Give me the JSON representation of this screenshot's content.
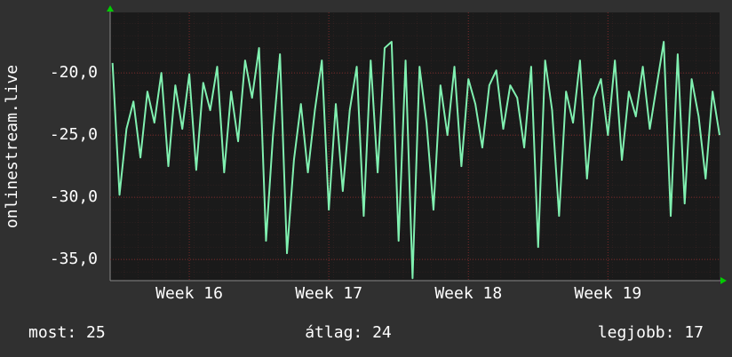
{
  "chart_data": {
    "type": "line",
    "y_label": "onlinestream.live",
    "x": [
      15.45,
      15.5,
      15.55,
      15.6,
      15.65,
      15.7,
      15.75,
      15.8,
      15.85,
      15.9,
      15.95,
      16.0,
      16.05,
      16.1,
      16.15,
      16.2,
      16.25,
      16.3,
      16.35,
      16.4,
      16.45,
      16.5,
      16.55,
      16.6,
      16.65,
      16.7,
      16.75,
      16.8,
      16.85,
      16.9,
      16.95,
      17.0,
      17.05,
      17.1,
      17.15,
      17.2,
      17.25,
      17.3,
      17.35,
      17.4,
      17.45,
      17.5,
      17.55,
      17.6,
      17.65,
      17.7,
      17.75,
      17.8,
      17.85,
      17.9,
      17.95,
      18.0,
      18.05,
      18.1,
      18.15,
      18.2,
      18.25,
      18.3,
      18.35,
      18.4,
      18.45,
      18.5,
      18.55,
      18.6,
      18.65,
      18.7,
      18.75,
      18.8,
      18.85,
      18.9,
      18.95,
      19.0,
      19.05,
      19.1,
      19.15,
      19.2,
      19.25,
      19.3,
      19.35,
      19.4,
      19.45,
      19.5,
      19.55,
      19.6,
      19.65,
      19.7,
      19.75,
      19.8
    ],
    "series": [
      {
        "name": "onlinestream.live",
        "color": "#80f0b0",
        "values": [
          -19.2,
          -29.8,
          -24.5,
          -22.3,
          -26.8,
          -21.5,
          -24.0,
          -20.0,
          -27.5,
          -21.0,
          -24.5,
          -20.1,
          -27.8,
          -20.8,
          -23.0,
          -19.5,
          -28.0,
          -21.5,
          -25.5,
          -19.0,
          -22.0,
          -18.0,
          -33.5,
          -25.0,
          -18.5,
          -34.5,
          -27.0,
          -22.5,
          -28.0,
          -23.0,
          -19.0,
          -31.0,
          -22.5,
          -29.5,
          -23.0,
          -19.5,
          -31.5,
          -19.0,
          -28.0,
          -18.0,
          -17.5,
          -33.5,
          -19.0,
          -36.5,
          -19.5,
          -24.0,
          -31.0,
          -21.0,
          -25.0,
          -19.5,
          -27.5,
          -20.5,
          -22.5,
          -26.0,
          -21.0,
          -19.8,
          -24.5,
          -21.0,
          -22.0,
          -26.0,
          -19.5,
          -34.0,
          -19.0,
          -23.0,
          -31.5,
          -21.5,
          -24.0,
          -19.0,
          -28.5,
          -22.0,
          -20.5,
          -25.0,
          -19.0,
          -27.0,
          -21.5,
          -23.5,
          -19.5,
          -24.5,
          -21.0,
          -17.5,
          -31.5,
          -18.5,
          -30.5,
          -20.5,
          -23.5,
          -28.5,
          -21.5,
          -25.0
        ]
      }
    ],
    "xlim": [
      15.433,
      19.8
    ],
    "xticks": [
      {
        "value": 16,
        "label": "Week 16"
      },
      {
        "value": 17,
        "label": "Week 17"
      },
      {
        "value": 18,
        "label": "Week 18"
      },
      {
        "value": 19,
        "label": "Week 19"
      }
    ],
    "ylim": [
      -36.7,
      -15.14
    ],
    "yticks": [
      {
        "value": -20,
        "label": "-20,0"
      },
      {
        "value": -25,
        "label": "-25,0"
      },
      {
        "value": -30,
        "label": "-30,0"
      },
      {
        "value": -35,
        "label": "-35,0"
      }
    ],
    "grid": true,
    "stats": [
      "most: 25",
      "átlag: 24",
      "legjobb: 17"
    ]
  }
}
